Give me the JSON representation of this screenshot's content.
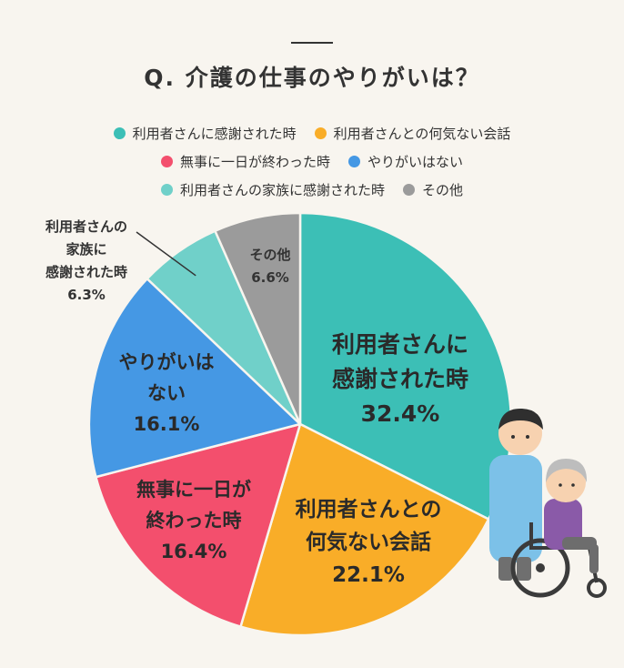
{
  "title": "Q. 介護の仕事のやりがいは？",
  "chart_data": {
    "type": "pie",
    "title": "Q. 介護の仕事のやりがいは？",
    "unit": "%",
    "slices": [
      {
        "legend": "利用者さんに感謝された時",
        "label_lines": [
          "利用者さんに",
          "感謝された時"
        ],
        "value": 32.4,
        "value_label": "32.4%",
        "color": "#3cbfb6"
      },
      {
        "legend": "利用者さんとの何気ない会話",
        "label_lines": [
          "利用者さんとの",
          "何気ない会話"
        ],
        "value": 22.1,
        "value_label": "22.1%",
        "color": "#f9ad28"
      },
      {
        "legend": "無事に一日が終わった時",
        "label_lines": [
          "無事に一日が",
          "終わった時"
        ],
        "value": 16.4,
        "value_label": "16.4%",
        "color": "#f34f6d"
      },
      {
        "legend": "やりがいはない",
        "label_lines": [
          "やりがいは",
          "ない"
        ],
        "value": 16.1,
        "value_label": "16.1%",
        "color": "#4598e4"
      },
      {
        "legend": "利用者さんの家族に感謝された時",
        "label_lines": [
          "利用者さんの",
          "家族に",
          "感謝された時"
        ],
        "value": 6.3,
        "value_label": "6.3%",
        "color": "#70d0c9"
      },
      {
        "legend": "その他",
        "label_lines": [
          "その他"
        ],
        "value": 6.6,
        "value_label": "6.6%",
        "color": "#9b9b9b"
      }
    ],
    "legend_order": [
      0,
      1,
      2,
      3,
      4,
      5
    ],
    "legend_placement": "top-center",
    "start_angle": "12 o'clock",
    "direction": "clockwise"
  }
}
